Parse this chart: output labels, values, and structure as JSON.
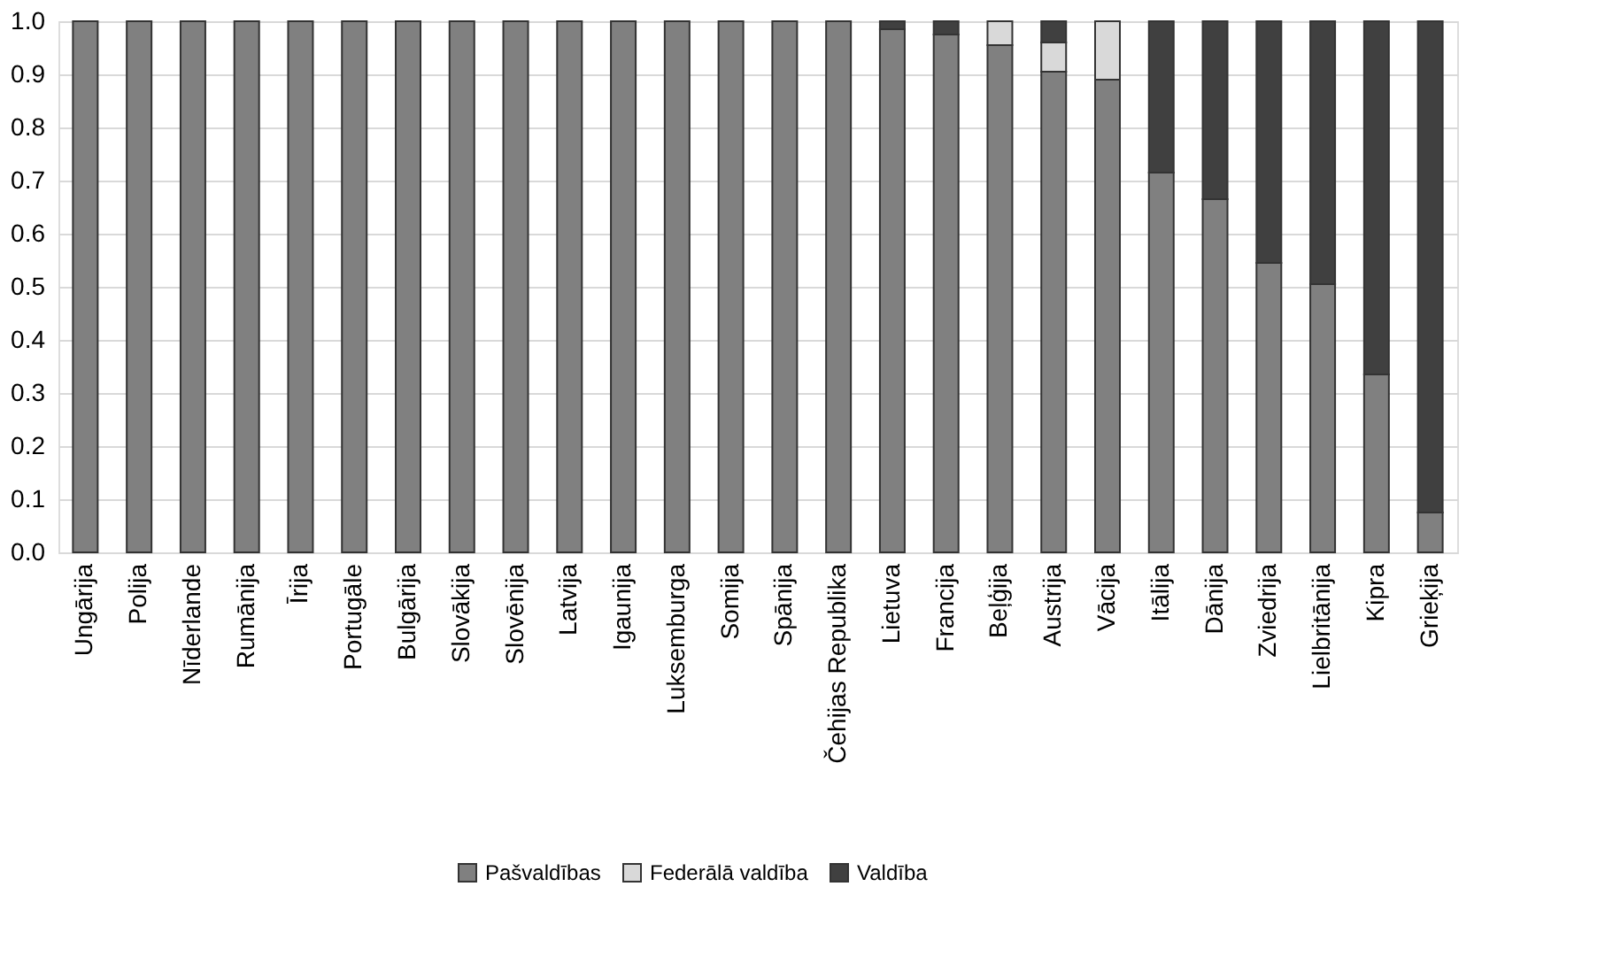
{
  "chart_data": {
    "type": "bar",
    "stacked": true,
    "categories": [
      "Ungārija",
      "Polija",
      "Nīderlande",
      "Rumānija",
      "Īrija",
      "Portugāle",
      "Bulgārija",
      "Slovākija",
      "Slovēnija",
      "Latvija",
      "Igaunija",
      "Luksemburga",
      "Somija",
      "Spānija",
      "Čehijas Republika",
      "Lietuva",
      "Francija",
      "Beļģija",
      "Austrija",
      "Vācija",
      "Itālija",
      "Dānija",
      "Zviedrija",
      "Lielbritānija",
      "Kipra",
      "Grieķija"
    ],
    "series": [
      {
        "name": "Pašvaldības",
        "color": "#808080",
        "values": [
          1,
          1,
          1,
          1,
          1,
          1,
          1,
          1,
          1,
          1,
          1,
          1,
          1,
          1,
          1,
          0.985,
          0.975,
          0.955,
          0.905,
          0.89,
          0.715,
          0.665,
          0.545,
          0.505,
          0.335,
          0.075
        ]
      },
      {
        "name": "Federālā valdība",
        "color": "#d9d9d9",
        "values": [
          0,
          0,
          0,
          0,
          0,
          0,
          0,
          0,
          0,
          0,
          0,
          0,
          0,
          0,
          0,
          0,
          0,
          0.045,
          0.055,
          0.11,
          0,
          0,
          0,
          0,
          0,
          0
        ]
      },
      {
        "name": "Valdība",
        "color": "#404040",
        "values": [
          0,
          0,
          0,
          0,
          0,
          0,
          0,
          0,
          0,
          0,
          0,
          0,
          0,
          0,
          0,
          0.015,
          0.025,
          0,
          0.04,
          0,
          0.285,
          0.335,
          0.455,
          0.495,
          0.665,
          0.925
        ]
      }
    ],
    "ylim": [
      0,
      1
    ],
    "yticks": [
      {
        "value": 0,
        "label": "0.0"
      },
      0.1,
      0.2,
      0.3,
      0.4,
      0.5,
      0.6,
      0.7,
      0.8,
      0.9,
      {
        "value": 1,
        "label": "1.0"
      }
    ],
    "grid": "y",
    "legend": "bottom"
  }
}
